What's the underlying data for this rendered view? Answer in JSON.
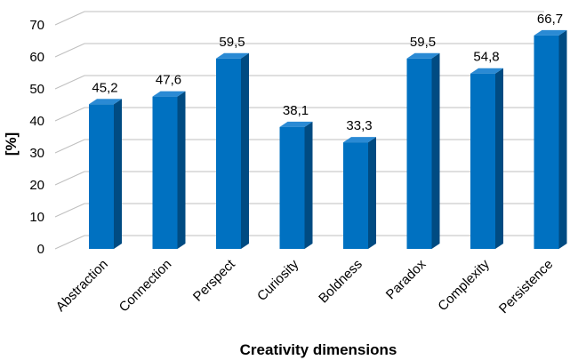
{
  "chart_data": {
    "type": "bar",
    "categories": [
      "Abstraction",
      "Connection",
      "Perspect",
      "Curiosity",
      "Boldness",
      "Paradox",
      "Complexity",
      "Persistence"
    ],
    "values": [
      45.2,
      47.6,
      59.5,
      38.1,
      33.3,
      59.5,
      54.8,
      66.7
    ],
    "data_labels": [
      "45,2",
      "47,6",
      "59,5",
      "38,1",
      "33,3",
      "59,5",
      "54,8",
      "66,7"
    ],
    "xlabel": "Creativity dimensions",
    "ylabel": "[%]",
    "ylim": [
      0,
      70
    ],
    "yticks": [
      "0",
      "10",
      "20",
      "30",
      "40",
      "50",
      "60",
      "70"
    ],
    "grid": true,
    "legend": "none",
    "style": "3d",
    "colors": {
      "bar_front": "#0071C1",
      "bar_side": "#004B82",
      "bar_top": "#2A8AD4",
      "grid": "#BFBFBF"
    }
  }
}
